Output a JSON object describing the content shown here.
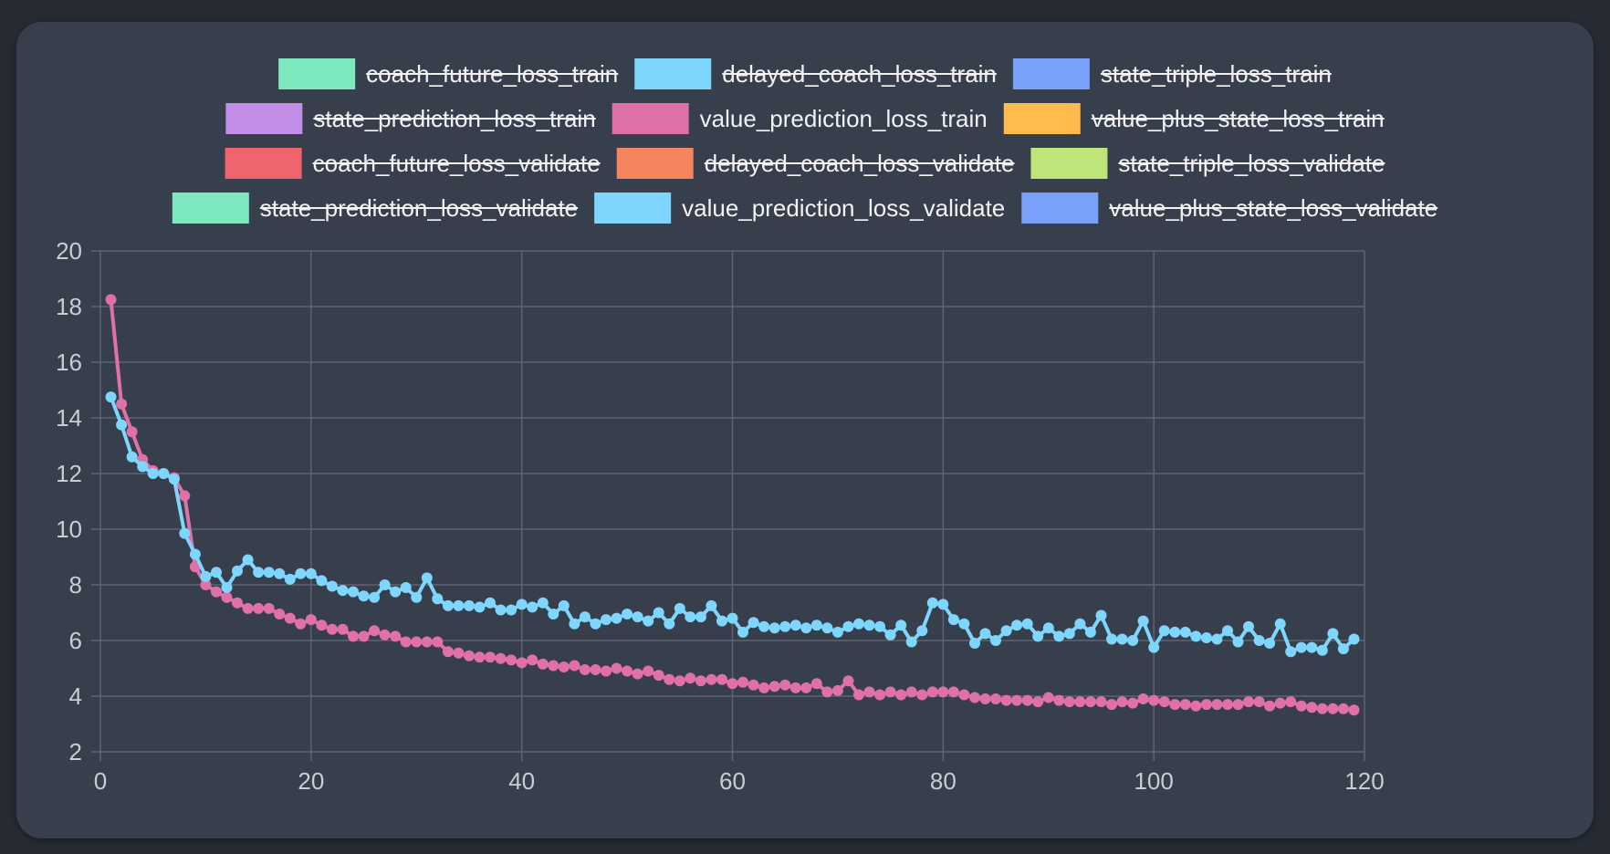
{
  "chart_data": {
    "type": "line",
    "x_ticks": [
      0,
      20,
      40,
      60,
      80,
      100,
      120
    ],
    "y_ticks": [
      2,
      4,
      6,
      8,
      10,
      12,
      14,
      16,
      18,
      20
    ],
    "xlim": [
      0,
      120
    ],
    "ylim": [
      2,
      20
    ],
    "grid": true,
    "legend_position": "top",
    "legend": [
      {
        "label": "coach_future_loss_train",
        "color": "#7ee8c0",
        "hidden": true
      },
      {
        "label": "delayed_coach_loss_train",
        "color": "#7fd6fc",
        "hidden": true
      },
      {
        "label": "state_triple_loss_train",
        "color": "#7aa1fa",
        "hidden": true
      },
      {
        "label": "state_prediction_loss_train",
        "color": "#c38ee8",
        "hidden": true
      },
      {
        "label": "value_prediction_loss_train",
        "color": "#e070a8",
        "hidden": false
      },
      {
        "label": "value_plus_state_loss_train",
        "color": "#ffbb4d",
        "hidden": true
      },
      {
        "label": "coach_future_loss_validate",
        "color": "#f0646e",
        "hidden": true
      },
      {
        "label": "delayed_coach_loss_validate",
        "color": "#f5855e",
        "hidden": true
      },
      {
        "label": "state_triple_loss_validate",
        "color": "#bde57a",
        "hidden": true
      },
      {
        "label": "state_prediction_loss_validate",
        "color": "#7ee8c0",
        "hidden": true
      },
      {
        "label": "value_prediction_loss_validate",
        "color": "#7fd6fc",
        "hidden": false
      },
      {
        "label": "value_plus_state_loss_validate",
        "color": "#7aa1fa",
        "hidden": true
      }
    ],
    "series": [
      {
        "name": "value_prediction_loss_train",
        "color": "#e070a8",
        "x_start": 1,
        "values": [
          18.25,
          14.5,
          13.5,
          12.5,
          12.1,
          12.0,
          11.85,
          11.2,
          8.65,
          8.0,
          7.75,
          7.55,
          7.35,
          7.15,
          7.15,
          7.15,
          6.95,
          6.8,
          6.6,
          6.75,
          6.55,
          6.4,
          6.4,
          6.15,
          6.15,
          6.35,
          6.2,
          6.15,
          5.95,
          5.95,
          5.95,
          5.95,
          5.6,
          5.55,
          5.45,
          5.4,
          5.4,
          5.35,
          5.3,
          5.2,
          5.3,
          5.15,
          5.1,
          5.05,
          5.1,
          4.95,
          4.95,
          4.9,
          5.0,
          4.9,
          4.8,
          4.9,
          4.75,
          4.6,
          4.55,
          4.65,
          4.55,
          4.6,
          4.6,
          4.45,
          4.5,
          4.4,
          4.3,
          4.35,
          4.4,
          4.3,
          4.3,
          4.45,
          4.15,
          4.2,
          4.55,
          4.05,
          4.15,
          4.05,
          4.15,
          4.05,
          4.15,
          4.05,
          4.15,
          4.15,
          4.15,
          4.05,
          3.95,
          3.9,
          3.9,
          3.85,
          3.85,
          3.85,
          3.8,
          3.95,
          3.85,
          3.8,
          3.8,
          3.8,
          3.8,
          3.7,
          3.8,
          3.75,
          3.9,
          3.85,
          3.8,
          3.7,
          3.7,
          3.65,
          3.7,
          3.7,
          3.7,
          3.7,
          3.8,
          3.8,
          3.65,
          3.75,
          3.8,
          3.65,
          3.6,
          3.55,
          3.55,
          3.55,
          3.5
        ]
      },
      {
        "name": "value_prediction_loss_validate",
        "color": "#7fd6fc",
        "x_start": 1,
        "values": [
          14.75,
          13.75,
          12.6,
          12.25,
          12.0,
          12.0,
          11.8,
          9.85,
          9.1,
          8.3,
          8.45,
          7.9,
          8.5,
          8.9,
          8.45,
          8.45,
          8.4,
          8.2,
          8.4,
          8.4,
          8.15,
          7.95,
          7.8,
          7.75,
          7.6,
          7.55,
          8.0,
          7.75,
          7.9,
          7.55,
          8.25,
          7.5,
          7.25,
          7.25,
          7.25,
          7.2,
          7.35,
          7.1,
          7.1,
          7.3,
          7.2,
          7.35,
          6.95,
          7.25,
          6.6,
          6.85,
          6.6,
          6.75,
          6.8,
          6.95,
          6.85,
          6.7,
          7.0,
          6.6,
          7.15,
          6.85,
          6.85,
          7.25,
          6.7,
          6.8,
          6.3,
          6.65,
          6.5,
          6.45,
          6.5,
          6.55,
          6.45,
          6.55,
          6.45,
          6.3,
          6.5,
          6.6,
          6.55,
          6.5,
          6.2,
          6.55,
          5.95,
          6.35,
          7.35,
          7.3,
          6.75,
          6.6,
          5.9,
          6.25,
          6.0,
          6.35,
          6.55,
          6.6,
          6.15,
          6.45,
          6.15,
          6.25,
          6.6,
          6.3,
          6.9,
          6.05,
          6.05,
          6.0,
          6.7,
          5.75,
          6.35,
          6.3,
          6.3,
          6.15,
          6.1,
          6.05,
          6.35,
          5.95,
          6.5,
          6.0,
          5.9,
          6.6,
          5.6,
          5.75,
          5.75,
          5.65,
          6.25,
          5.7,
          6.05
        ]
      }
    ]
  }
}
